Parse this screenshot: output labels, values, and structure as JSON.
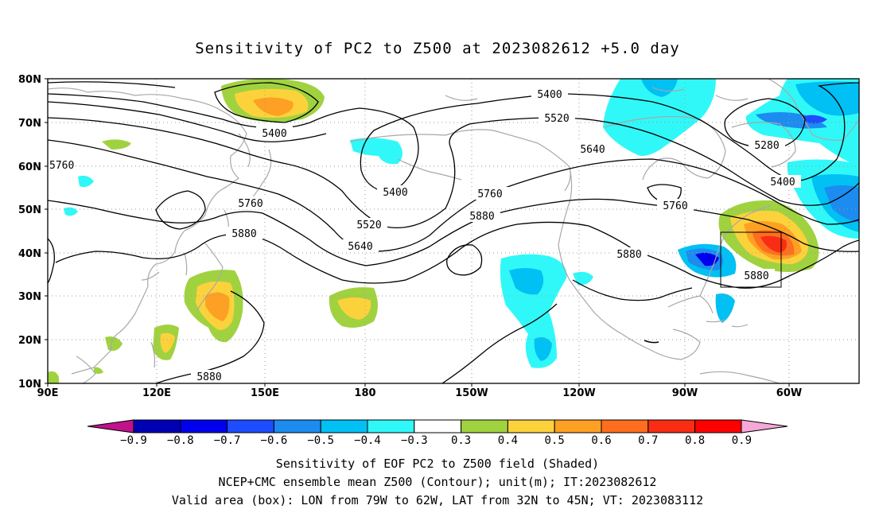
{
  "title": "Sensitivity of PC2 to Z500 at 2023082612 +5.0 day",
  "lat_labels": [
    "80N",
    "70N",
    "60N",
    "50N",
    "40N",
    "30N",
    "20N",
    "10N"
  ],
  "lon_labels": [
    "90E",
    "120E",
    "150E",
    "180",
    "150W",
    "120W",
    "90W",
    "60W"
  ],
  "contour_labels": [
    "5400",
    "5400",
    "5400",
    "5400",
    "5280",
    "5520",
    "5520",
    "5640",
    "5640",
    "5760",
    "5760",
    "5760",
    "5760",
    "5880",
    "5880",
    "5880",
    "5880",
    "5880"
  ],
  "colorbar": {
    "ticks": [
      "−0.9",
      "−0.8",
      "−0.7",
      "−0.6",
      "−0.5",
      "−0.4",
      "−0.3",
      "0.3",
      "0.4",
      "0.5",
      "0.6",
      "0.7",
      "0.8",
      "0.9"
    ],
    "colors": [
      "#0000b4",
      "#0000ee",
      "#1e4cff",
      "#1c8cf0",
      "#00c0f4",
      "#30f8f8",
      "#ffffff",
      "#a0d240",
      "#fcd23c",
      "#fea023",
      "#ff6e1e",
      "#f82d14",
      "#ff0000"
    ],
    "left_tri_color": "#c0128a",
    "right_tri_color": "#f6a8d8"
  },
  "captions": [
    "Sensitivity of EOF PC2 to Z500 field (Shaded)",
    "NCEP+CMC ensemble mean Z500 (Contour); unit(m); IT:2023082612",
    "Valid area (box): LON from 79W to 62W, LAT from 32N to 45N; VT: 2023083112"
  ]
}
